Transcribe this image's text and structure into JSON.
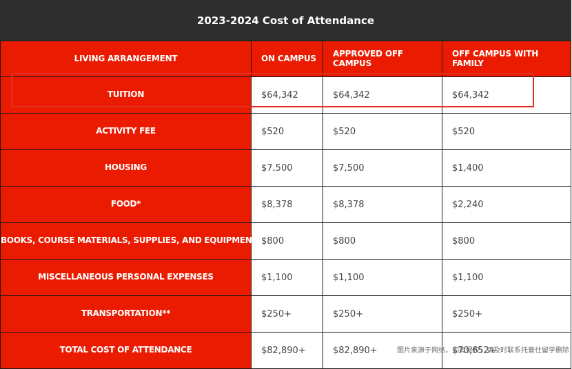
{
  "title": "2023-2024 Cost of Attendance",
  "headers": [
    "LIVING ARRANGEMENT",
    "ON CAMPUS",
    "APPROVED OFF CAMPUS",
    "OFF CAMPUS WITH FAMILY"
  ],
  "rows": [
    {
      "label": "TUITION",
      "on_campus": "$64,342",
      "approved_off_campus": "$64,342",
      "off_campus_family": "$64,342"
    },
    {
      "label": "ACTIVITY FEE",
      "on_campus": "$520",
      "approved_off_campus": "$520",
      "off_campus_family": "$520"
    },
    {
      "label": "HOUSING",
      "on_campus": "$7,500",
      "approved_off_campus": "$7,500",
      "off_campus_family": "$1,400"
    },
    {
      "label": "FOOD*",
      "on_campus": "$8,378",
      "approved_off_campus": "$8,378",
      "off_campus_family": "$2,240"
    },
    {
      "label": "BOOKS, COURSE MATERIALS, SUPPLIES, AND EQUIPMENT",
      "on_campus": "$800",
      "approved_off_campus": "$800",
      "off_campus_family": "$800"
    },
    {
      "label": "MISCELLANEOUS PERSONAL EXPENSES",
      "on_campus": "$1,100",
      "approved_off_campus": "$1,100",
      "off_campus_family": "$1,100"
    },
    {
      "label": "TRANSPORTATION**",
      "on_campus": "$250+",
      "approved_off_campus": "$250+",
      "off_campus_family": "$250+"
    },
    {
      "label": "TOTAL COST OF ATTENDANCE",
      "on_campus": "$82,890+",
      "approved_off_campus": "$82,890+",
      "off_campus_family": "$70,652+"
    }
  ],
  "watermark": "图片来源于网络，如有侵权，请及时联系托普仕留学删除",
  "colors": {
    "header_bg": "#2e2e2e",
    "accent_red": "#ea1b00",
    "highlight_border": "#e03020"
  }
}
